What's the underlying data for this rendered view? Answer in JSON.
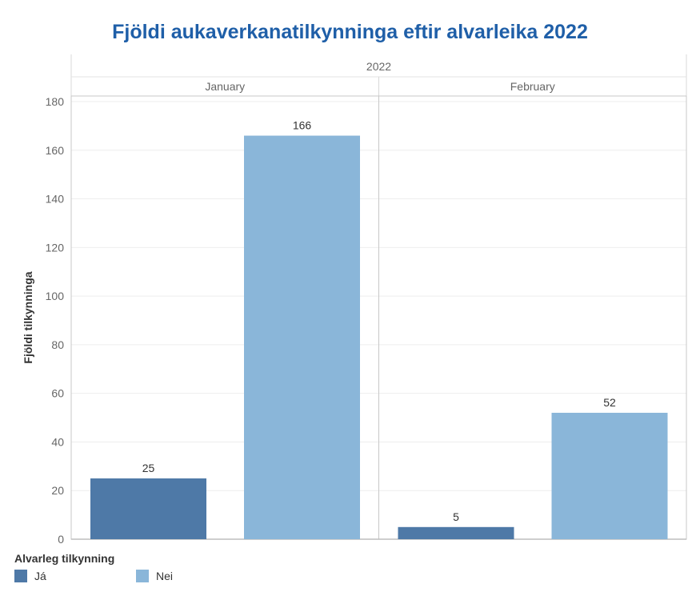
{
  "chart_data": {
    "type": "bar",
    "title": "Fjöldi aukaverkanatilkynninga eftir alvarleika 2022",
    "year_header": "2022",
    "panels": [
      "January",
      "February"
    ],
    "series": [
      {
        "name": "Já",
        "color": "#4e79a7",
        "values": [
          25,
          5
        ]
      },
      {
        "name": "Nei",
        "color": "#8ab6d9",
        "values": [
          166,
          52
        ]
      }
    ],
    "ylabel": "Fjöldi tilkynninga",
    "ylim": [
      0,
      180
    ],
    "yticks": [
      0,
      20,
      40,
      60,
      80,
      100,
      120,
      140,
      160,
      180
    ],
    "grid": true,
    "legend": {
      "title": "Alvarleg tilkynning",
      "placement": "bottom-left"
    }
  }
}
